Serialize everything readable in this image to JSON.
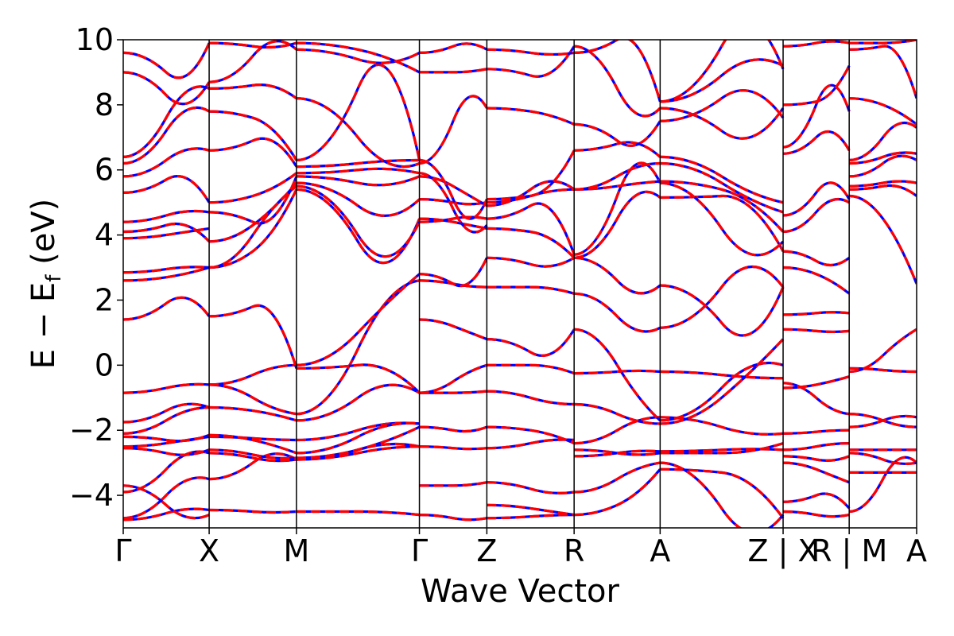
{
  "chart_data": {
    "type": "line",
    "xlabel": "Wave Vector",
    "ylabel_main": "E − E",
    "ylabel_sub": "f",
    "ylabel_unit": " (eV)",
    "ylim": [
      -5,
      10
    ],
    "yticks": [
      -4,
      -2,
      0,
      2,
      4,
      6,
      8,
      10
    ],
    "ytick_labels": [
      "−4",
      "−2",
      "0",
      "2",
      "4",
      "6",
      "8",
      "10"
    ],
    "xlim": [
      0,
      1
    ],
    "kpoints": [
      {
        "label": "Γ",
        "x": 0.0
      },
      {
        "label": "X",
        "x": 0.1083
      },
      {
        "label": "M",
        "x": 0.2183
      },
      {
        "label": "Γ",
        "x": 0.3733
      },
      {
        "label": "Z",
        "x": 0.4583
      },
      {
        "label": "R",
        "x": 0.5683
      },
      {
        "label": "A",
        "x": 0.6767
      },
      {
        "label": "Z | X",
        "x": 0.8317
      },
      {
        "label": "R | M",
        "x": 0.915
      },
      {
        "label": "A",
        "x": 1.0
      }
    ],
    "grid": false,
    "legend": "none",
    "series_styles": [
      {
        "color": "#0000ff",
        "style": "solid"
      },
      {
        "color": "#ff0000",
        "style": "dashed"
      }
    ],
    "segments": [
      {
        "x0": 0.0,
        "x1": 0.1083,
        "bands": [
          [
            -4.75,
            -4.55,
            -4.45
          ],
          [
            -4.7,
            -4.0,
            -3.5
          ],
          [
            -3.7,
            -4.3,
            -4.6
          ],
          [
            -3.9,
            -3.2,
            -2.7
          ],
          [
            -2.55,
            -2.7,
            -2.6
          ],
          [
            -2.5,
            -2.4,
            -2.2
          ],
          [
            -2.2,
            -2.3,
            -2.15
          ],
          [
            -2.1,
            -1.7,
            -1.3
          ],
          [
            -1.75,
            -1.4,
            -1.3
          ],
          [
            -0.85,
            -0.7,
            -0.6
          ],
          [
            1.4,
            1.9,
            1.5
          ],
          [
            2.6,
            2.7,
            3.0
          ],
          [
            2.85,
            2.95,
            3.0
          ],
          [
            3.9,
            4.0,
            4.2
          ],
          [
            4.1,
            4.3,
            3.8
          ],
          [
            4.4,
            4.6,
            4.7
          ],
          [
            5.3,
            5.7,
            5.0
          ],
          [
            5.8,
            6.3,
            6.6
          ],
          [
            6.2,
            7.2,
            7.8
          ],
          [
            6.4,
            7.6,
            8.5
          ],
          [
            9.0,
            8.3,
            8.7
          ],
          [
            9.6,
            9.0,
            9.9
          ]
        ]
      },
      {
        "x0": 0.1083,
        "x1": 0.2183,
        "bands": [
          [
            -4.45,
            -4.5,
            -4.5
          ],
          [
            -3.5,
            -3.0,
            -2.9
          ],
          [
            -2.7,
            -2.85,
            -2.9
          ],
          [
            -2.6,
            -2.75,
            -2.85
          ],
          [
            -2.2,
            -2.25,
            -2.3
          ],
          [
            -2.15,
            -2.3,
            -2.7
          ],
          [
            -1.3,
            -1.4,
            -1.7
          ],
          [
            -0.6,
            -1.0,
            -1.5
          ],
          [
            -0.6,
            -0.3,
            0.0
          ],
          [
            1.5,
            1.8,
            -0.1
          ],
          [
            3.0,
            3.5,
            5.4
          ],
          [
            3.0,
            4.0,
            5.5
          ],
          [
            3.8,
            4.3,
            5.6
          ],
          [
            4.7,
            4.4,
            5.8
          ],
          [
            5.0,
            5.2,
            5.9
          ],
          [
            6.6,
            6.9,
            6.1
          ],
          [
            7.8,
            7.6,
            6.3
          ],
          [
            8.5,
            8.6,
            8.2
          ],
          [
            8.7,
            9.5,
            9.7
          ],
          [
            9.9,
            9.8,
            9.9
          ]
        ]
      },
      {
        "x0": 0.2183,
        "x1": 0.3733,
        "bands": [
          [
            -4.5,
            -4.5,
            -4.6
          ],
          [
            -2.9,
            -2.6,
            -2.5
          ],
          [
            -2.9,
            -2.7,
            -2.5
          ],
          [
            -2.85,
            -2.6,
            -1.9
          ],
          [
            -2.3,
            -2.0,
            -1.8
          ],
          [
            -2.7,
            -2.2,
            -1.8
          ],
          [
            -1.7,
            -1.0,
            -0.85
          ],
          [
            -1.5,
            0.5,
            2.6
          ],
          [
            0.0,
            1.0,
            2.8
          ],
          [
            -0.1,
            0.0,
            -0.85
          ],
          [
            5.4,
            3.8,
            4.5
          ],
          [
            5.5,
            4.0,
            4.4
          ],
          [
            5.6,
            4.9,
            5.1
          ],
          [
            5.8,
            5.6,
            5.8
          ],
          [
            5.9,
            6.0,
            5.9
          ],
          [
            6.1,
            6.2,
            6.3
          ],
          [
            6.3,
            8.5,
            6.3
          ],
          [
            8.2,
            7.0,
            6.2
          ],
          [
            9.7,
            9.4,
            9.6
          ],
          [
            9.9,
            9.7,
            9.0
          ]
        ]
      },
      {
        "x0": 0.3733,
        "x1": 0.4583,
        "bands": [
          [
            -4.6,
            -4.7,
            -4.7
          ],
          [
            -3.7,
            -3.7,
            -3.6
          ],
          [
            -2.5,
            -2.55,
            -2.55
          ],
          [
            -1.9,
            -2.0,
            -1.9
          ],
          [
            -0.85,
            -0.85,
            -0.8
          ],
          [
            -0.85,
            -0.5,
            0.0
          ],
          [
            1.4,
            1.2,
            0.8
          ],
          [
            2.6,
            2.5,
            2.4
          ],
          [
            2.8,
            2.5,
            3.3
          ],
          [
            4.5,
            4.4,
            4.2
          ],
          [
            4.4,
            4.5,
            4.5
          ],
          [
            5.1,
            5.0,
            5.0
          ],
          [
            5.8,
            5.5,
            4.9
          ],
          [
            5.9,
            4.8,
            4.3
          ],
          [
            6.3,
            5.1,
            5.1
          ],
          [
            6.2,
            7.5,
            7.9
          ],
          [
            9.0,
            9.0,
            9.1
          ],
          [
            9.6,
            9.8,
            9.7
          ]
        ]
      },
      {
        "x0": 0.4583,
        "x1": 0.5683,
        "bands": [
          [
            -4.7,
            -4.65,
            -4.6
          ],
          [
            -4.3,
            -4.4,
            -4.6
          ],
          [
            -3.6,
            -3.8,
            -3.9
          ],
          [
            -2.55,
            -2.4,
            -2.3
          ],
          [
            -1.9,
            -2.0,
            -2.4
          ],
          [
            -0.8,
            -1.0,
            -1.2
          ],
          [
            0.0,
            0.0,
            -0.25
          ],
          [
            0.8,
            0.4,
            1.1
          ],
          [
            2.4,
            2.4,
            2.2
          ],
          [
            3.3,
            3.1,
            3.3
          ],
          [
            4.2,
            4.1,
            3.3
          ],
          [
            4.5,
            4.9,
            3.4
          ],
          [
            4.9,
            5.4,
            5.4
          ],
          [
            5.0,
            5.2,
            5.4
          ],
          [
            5.1,
            5.2,
            6.6
          ],
          [
            7.9,
            7.8,
            7.4
          ],
          [
            9.1,
            8.9,
            9.8
          ],
          [
            9.7,
            9.6,
            9.6
          ]
        ]
      },
      {
        "x0": 0.5683,
        "x1": 0.6767,
        "bands": [
          [
            -4.6,
            -4.3,
            -3.2
          ],
          [
            -3.9,
            -3.5,
            -3.0
          ],
          [
            -2.8,
            -2.7,
            -2.65
          ],
          [
            -2.6,
            -2.7,
            -2.7
          ],
          [
            -2.4,
            -2.0,
            -1.6
          ],
          [
            -1.2,
            -1.5,
            -1.8
          ],
          [
            -0.25,
            -0.2,
            -0.2
          ],
          [
            1.1,
            0.0,
            -1.7
          ],
          [
            2.2,
            1.5,
            1.15
          ],
          [
            3.3,
            2.6,
            2.45
          ],
          [
            3.3,
            4.5,
            5.15
          ],
          [
            3.4,
            5.2,
            5.6
          ],
          [
            5.4,
            5.5,
            5.65
          ],
          [
            5.4,
            5.8,
            6.2
          ],
          [
            6.6,
            6.8,
            6.4
          ],
          [
            7.4,
            6.9,
            7.5
          ],
          [
            9.8,
            8.5,
            7.9
          ],
          [
            9.6,
            10.0,
            8.1
          ]
        ]
      },
      {
        "x0": 0.6767,
        "x1": 0.8317,
        "bands": [
          [
            -3.2,
            -3.3,
            -4.7
          ],
          [
            -3.0,
            -4.4,
            -4.6
          ],
          [
            -2.65,
            -2.6,
            -2.6
          ],
          [
            -2.7,
            -2.7,
            -2.4
          ],
          [
            -1.6,
            -1.9,
            -2.1
          ],
          [
            -1.8,
            -1.0,
            0.8
          ],
          [
            -0.2,
            -0.3,
            -0.4
          ],
          [
            -1.7,
            -0.7,
            0.0
          ],
          [
            1.15,
            2.4,
            2.4
          ],
          [
            2.45,
            1.3,
            2.4
          ],
          [
            5.15,
            5.2,
            3.5
          ],
          [
            5.6,
            4.2,
            3.8
          ],
          [
            5.65,
            5.4,
            4.1
          ],
          [
            6.2,
            5.6,
            4.7
          ],
          [
            6.4,
            5.8,
            5.0
          ],
          [
            7.5,
            8.2,
            7.6
          ],
          [
            7.9,
            7.2,
            7.9
          ],
          [
            8.1,
            8.9,
            9.2
          ],
          [
            8.1,
            9.8,
            9.1
          ]
        ]
      },
      {
        "x0": 0.8317,
        "x1": 0.915,
        "bands": [
          [
            -4.5,
            -4.6,
            -4.6
          ],
          [
            -4.2,
            -4.0,
            -4.4
          ],
          [
            -3.0,
            -3.2,
            -3.6
          ],
          [
            -2.8,
            -2.9,
            -2.8
          ],
          [
            -2.6,
            -2.5,
            -2.4
          ],
          [
            -2.1,
            -2.05,
            -2.0
          ],
          [
            -0.55,
            -1.0,
            -1.5
          ],
          [
            -0.7,
            -0.6,
            -0.35
          ],
          [
            1.1,
            1.05,
            1.05
          ],
          [
            1.55,
            1.6,
            1.6
          ],
          [
            3.0,
            2.8,
            2.2
          ],
          [
            3.5,
            3.2,
            3.3
          ],
          [
            4.1,
            4.7,
            5.0
          ],
          [
            4.6,
            5.3,
            5.1
          ],
          [
            6.5,
            7.0,
            6.6
          ],
          [
            6.7,
            8.0,
            7.8
          ],
          [
            8.0,
            8.1,
            9.2
          ],
          [
            9.8,
            9.9,
            9.9
          ]
        ]
      },
      {
        "x0": 0.915,
        "x1": 1.0,
        "bands": [
          [
            -4.5,
            -3.5,
            -3.0
          ],
          [
            -3.3,
            -3.3,
            -3.3
          ],
          [
            -2.6,
            -2.6,
            -2.6
          ],
          [
            -2.7,
            -2.9,
            -3.0
          ],
          [
            -1.9,
            -1.7,
            -1.6
          ],
          [
            -1.5,
            -1.7,
            -1.9
          ],
          [
            -0.1,
            -0.15,
            -0.2
          ],
          [
            -0.2,
            0.3,
            1.1
          ],
          [
            5.2,
            4.5,
            2.5
          ],
          [
            5.4,
            5.5,
            5.2
          ],
          [
            5.5,
            5.6,
            5.6
          ],
          [
            5.8,
            6.2,
            6.3
          ],
          [
            6.2,
            6.4,
            6.5
          ],
          [
            6.3,
            7.0,
            7.3
          ],
          [
            8.2,
            8.0,
            7.4
          ],
          [
            9.7,
            9.8,
            8.2
          ],
          [
            9.9,
            9.9,
            10.0
          ]
        ]
      }
    ]
  }
}
